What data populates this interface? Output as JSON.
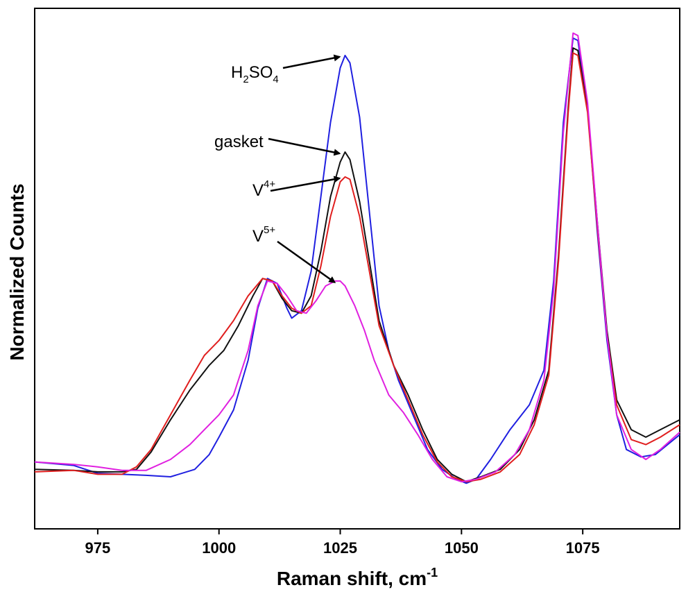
{
  "chart_data": {
    "type": "line",
    "title": "",
    "xlabel": "Raman shift, cm",
    "xlabel_sup": "-1",
    "ylabel": "Normalized Counts",
    "xlim": [
      962,
      1095
    ],
    "ylim": [
      0.0,
      1.05
    ],
    "xticks": [
      975,
      1000,
      1025,
      1050,
      1075
    ],
    "xtick_labels": [
      "975",
      "1000",
      "1025",
      "1050",
      "1075"
    ],
    "yticks_shown": false,
    "grid": false,
    "legend": "none (curves labeled with arrow annotations)",
    "series": [
      {
        "color": "#1f1fe0",
        "points": [
          [
            962,
            0.135
          ],
          [
            970,
            0.128
          ],
          [
            975,
            0.112
          ],
          [
            980,
            0.11
          ],
          [
            985,
            0.108
          ],
          [
            990,
            0.105
          ],
          [
            995,
            0.12
          ],
          [
            998,
            0.15
          ],
          [
            1000,
            0.185
          ],
          [
            1003,
            0.24
          ],
          [
            1006,
            0.34
          ],
          [
            1008,
            0.445
          ],
          [
            1010,
            0.505
          ],
          [
            1012,
            0.495
          ],
          [
            1014,
            0.445
          ],
          [
            1015,
            0.425
          ],
          [
            1017,
            0.44
          ],
          [
            1019,
            0.52
          ],
          [
            1021,
            0.67
          ],
          [
            1023,
            0.82
          ],
          [
            1025,
            0.93
          ],
          [
            1026,
            0.955
          ],
          [
            1027,
            0.94
          ],
          [
            1029,
            0.83
          ],
          [
            1031,
            0.64
          ],
          [
            1033,
            0.45
          ],
          [
            1035,
            0.36
          ],
          [
            1037,
            0.3
          ],
          [
            1040,
            0.23
          ],
          [
            1043,
            0.16
          ],
          [
            1046,
            0.12
          ],
          [
            1049,
            0.1
          ],
          [
            1051,
            0.092
          ],
          [
            1053,
            0.1
          ],
          [
            1056,
            0.14
          ],
          [
            1060,
            0.2
          ],
          [
            1064,
            0.25
          ],
          [
            1067,
            0.32
          ],
          [
            1069,
            0.5
          ],
          [
            1071,
            0.82
          ],
          [
            1073,
            0.99
          ],
          [
            1074,
            0.985
          ],
          [
            1076,
            0.85
          ],
          [
            1078,
            0.6
          ],
          [
            1080,
            0.38
          ],
          [
            1082,
            0.23
          ],
          [
            1084,
            0.16
          ],
          [
            1087,
            0.145
          ],
          [
            1090,
            0.15
          ],
          [
            1095,
            0.19
          ]
        ]
      },
      {
        "color": "#111111",
        "points": [
          [
            962,
            0.12
          ],
          [
            970,
            0.118
          ],
          [
            975,
            0.115
          ],
          [
            980,
            0.115
          ],
          [
            983,
            0.12
          ],
          [
            986,
            0.155
          ],
          [
            990,
            0.22
          ],
          [
            994,
            0.28
          ],
          [
            998,
            0.33
          ],
          [
            1001,
            0.36
          ],
          [
            1004,
            0.41
          ],
          [
            1007,
            0.47
          ],
          [
            1009,
            0.505
          ],
          [
            1011,
            0.5
          ],
          [
            1013,
            0.465
          ],
          [
            1015,
            0.44
          ],
          [
            1017,
            0.435
          ],
          [
            1019,
            0.47
          ],
          [
            1021,
            0.56
          ],
          [
            1023,
            0.67
          ],
          [
            1025,
            0.74
          ],
          [
            1026,
            0.76
          ],
          [
            1027,
            0.745
          ],
          [
            1029,
            0.66
          ],
          [
            1031,
            0.54
          ],
          [
            1033,
            0.42
          ],
          [
            1036,
            0.33
          ],
          [
            1039,
            0.27
          ],
          [
            1042,
            0.2
          ],
          [
            1045,
            0.14
          ],
          [
            1048,
            0.11
          ],
          [
            1051,
            0.095
          ],
          [
            1054,
            0.105
          ],
          [
            1058,
            0.12
          ],
          [
            1062,
            0.16
          ],
          [
            1065,
            0.22
          ],
          [
            1068,
            0.32
          ],
          [
            1070,
            0.55
          ],
          [
            1072,
            0.85
          ],
          [
            1073,
            0.97
          ],
          [
            1074,
            0.965
          ],
          [
            1076,
            0.85
          ],
          [
            1078,
            0.62
          ],
          [
            1080,
            0.4
          ],
          [
            1082,
            0.26
          ],
          [
            1085,
            0.2
          ],
          [
            1088,
            0.185
          ],
          [
            1091,
            0.2
          ],
          [
            1095,
            0.22
          ]
        ]
      },
      {
        "color": "#e01e1e",
        "points": [
          [
            962,
            0.115
          ],
          [
            970,
            0.118
          ],
          [
            975,
            0.11
          ],
          [
            980,
            0.11
          ],
          [
            983,
            0.125
          ],
          [
            986,
            0.16
          ],
          [
            990,
            0.23
          ],
          [
            994,
            0.3
          ],
          [
            997,
            0.35
          ],
          [
            1000,
            0.38
          ],
          [
            1003,
            0.42
          ],
          [
            1006,
            0.47
          ],
          [
            1009,
            0.505
          ],
          [
            1011,
            0.5
          ],
          [
            1013,
            0.47
          ],
          [
            1015,
            0.445
          ],
          [
            1017,
            0.435
          ],
          [
            1019,
            0.45
          ],
          [
            1021,
            0.53
          ],
          [
            1023,
            0.63
          ],
          [
            1025,
            0.7
          ],
          [
            1026,
            0.71
          ],
          [
            1027,
            0.705
          ],
          [
            1029,
            0.63
          ],
          [
            1031,
            0.52
          ],
          [
            1033,
            0.41
          ],
          [
            1036,
            0.33
          ],
          [
            1039,
            0.26
          ],
          [
            1042,
            0.19
          ],
          [
            1045,
            0.135
          ],
          [
            1048,
            0.105
          ],
          [
            1051,
            0.095
          ],
          [
            1054,
            0.1
          ],
          [
            1058,
            0.115
          ],
          [
            1062,
            0.15
          ],
          [
            1065,
            0.21
          ],
          [
            1068,
            0.31
          ],
          [
            1070,
            0.54
          ],
          [
            1072,
            0.84
          ],
          [
            1073,
            0.96
          ],
          [
            1074,
            0.955
          ],
          [
            1076,
            0.84
          ],
          [
            1078,
            0.61
          ],
          [
            1080,
            0.39
          ],
          [
            1082,
            0.25
          ],
          [
            1085,
            0.18
          ],
          [
            1088,
            0.17
          ],
          [
            1091,
            0.185
          ],
          [
            1095,
            0.21
          ]
        ]
      },
      {
        "color": "#e020e0",
        "points": [
          [
            962,
            0.135
          ],
          [
            970,
            0.13
          ],
          [
            975,
            0.125
          ],
          [
            980,
            0.118
          ],
          [
            985,
            0.118
          ],
          [
            990,
            0.14
          ],
          [
            994,
            0.17
          ],
          [
            997,
            0.2
          ],
          [
            1000,
            0.23
          ],
          [
            1003,
            0.27
          ],
          [
            1006,
            0.36
          ],
          [
            1008,
            0.45
          ],
          [
            1010,
            0.5
          ],
          [
            1012,
            0.495
          ],
          [
            1014,
            0.47
          ],
          [
            1016,
            0.44
          ],
          [
            1018,
            0.435
          ],
          [
            1020,
            0.46
          ],
          [
            1022,
            0.49
          ],
          [
            1024,
            0.5
          ],
          [
            1025,
            0.5
          ],
          [
            1026,
            0.49
          ],
          [
            1028,
            0.45
          ],
          [
            1030,
            0.4
          ],
          [
            1032,
            0.34
          ],
          [
            1035,
            0.27
          ],
          [
            1038,
            0.235
          ],
          [
            1041,
            0.19
          ],
          [
            1044,
            0.14
          ],
          [
            1047,
            0.105
          ],
          [
            1050,
            0.095
          ],
          [
            1053,
            0.1
          ],
          [
            1057,
            0.115
          ],
          [
            1061,
            0.15
          ],
          [
            1064,
            0.2
          ],
          [
            1067,
            0.3
          ],
          [
            1069,
            0.48
          ],
          [
            1071,
            0.8
          ],
          [
            1073,
            1.0
          ],
          [
            1074,
            0.995
          ],
          [
            1076,
            0.86
          ],
          [
            1078,
            0.62
          ],
          [
            1080,
            0.39
          ],
          [
            1082,
            0.23
          ],
          [
            1085,
            0.16
          ],
          [
            1088,
            0.14
          ],
          [
            1091,
            0.16
          ],
          [
            1095,
            0.195
          ]
        ]
      }
    ],
    "annotations": [
      {
        "text": "H",
        "sub1": "2",
        "mid": "SO",
        "sub2": "4",
        "arrow_to": [
          1026,
          0.955
        ]
      },
      {
        "text": "gasket",
        "arrow_to": [
          1026,
          0.76
        ]
      },
      {
        "text": "V",
        "sup": "4+",
        "arrow_to": [
          1026,
          0.71
        ]
      },
      {
        "text": "V",
        "sup": "5+",
        "arrow_to": [
          1025,
          0.5
        ]
      }
    ]
  }
}
